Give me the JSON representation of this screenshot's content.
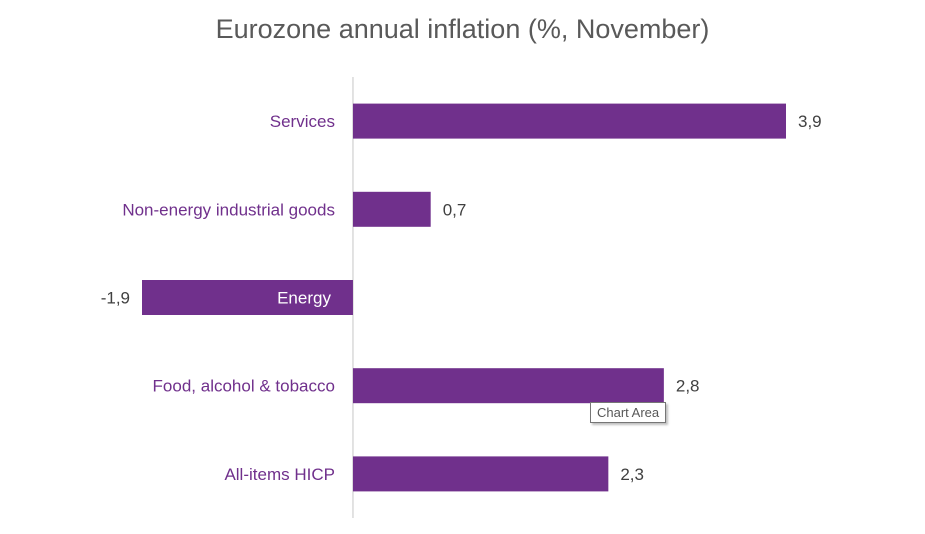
{
  "chart_data": {
    "type": "bar",
    "orientation": "horizontal",
    "title": "Eurozone annual inflation (%, November)",
    "categories": [
      "Services",
      "Non-energy industrial goods",
      "Energy",
      "Food, alcohol & tobacco",
      "All-items HICP"
    ],
    "values": [
      3.9,
      0.7,
      -1.9,
      2.8,
      2.3
    ],
    "data_labels": [
      "3,9",
      "0,7",
      "-1,9",
      "2,8",
      "2,3"
    ],
    "xlim": [
      -1.9,
      3.9
    ],
    "grid": false,
    "legend": "none",
    "bar_color": "#70308c",
    "category_label_color": "#70308c",
    "inside_label_color": "#ffffff",
    "axis_color": "#d9d9d9"
  },
  "tooltip": {
    "text": "Chart Area"
  }
}
